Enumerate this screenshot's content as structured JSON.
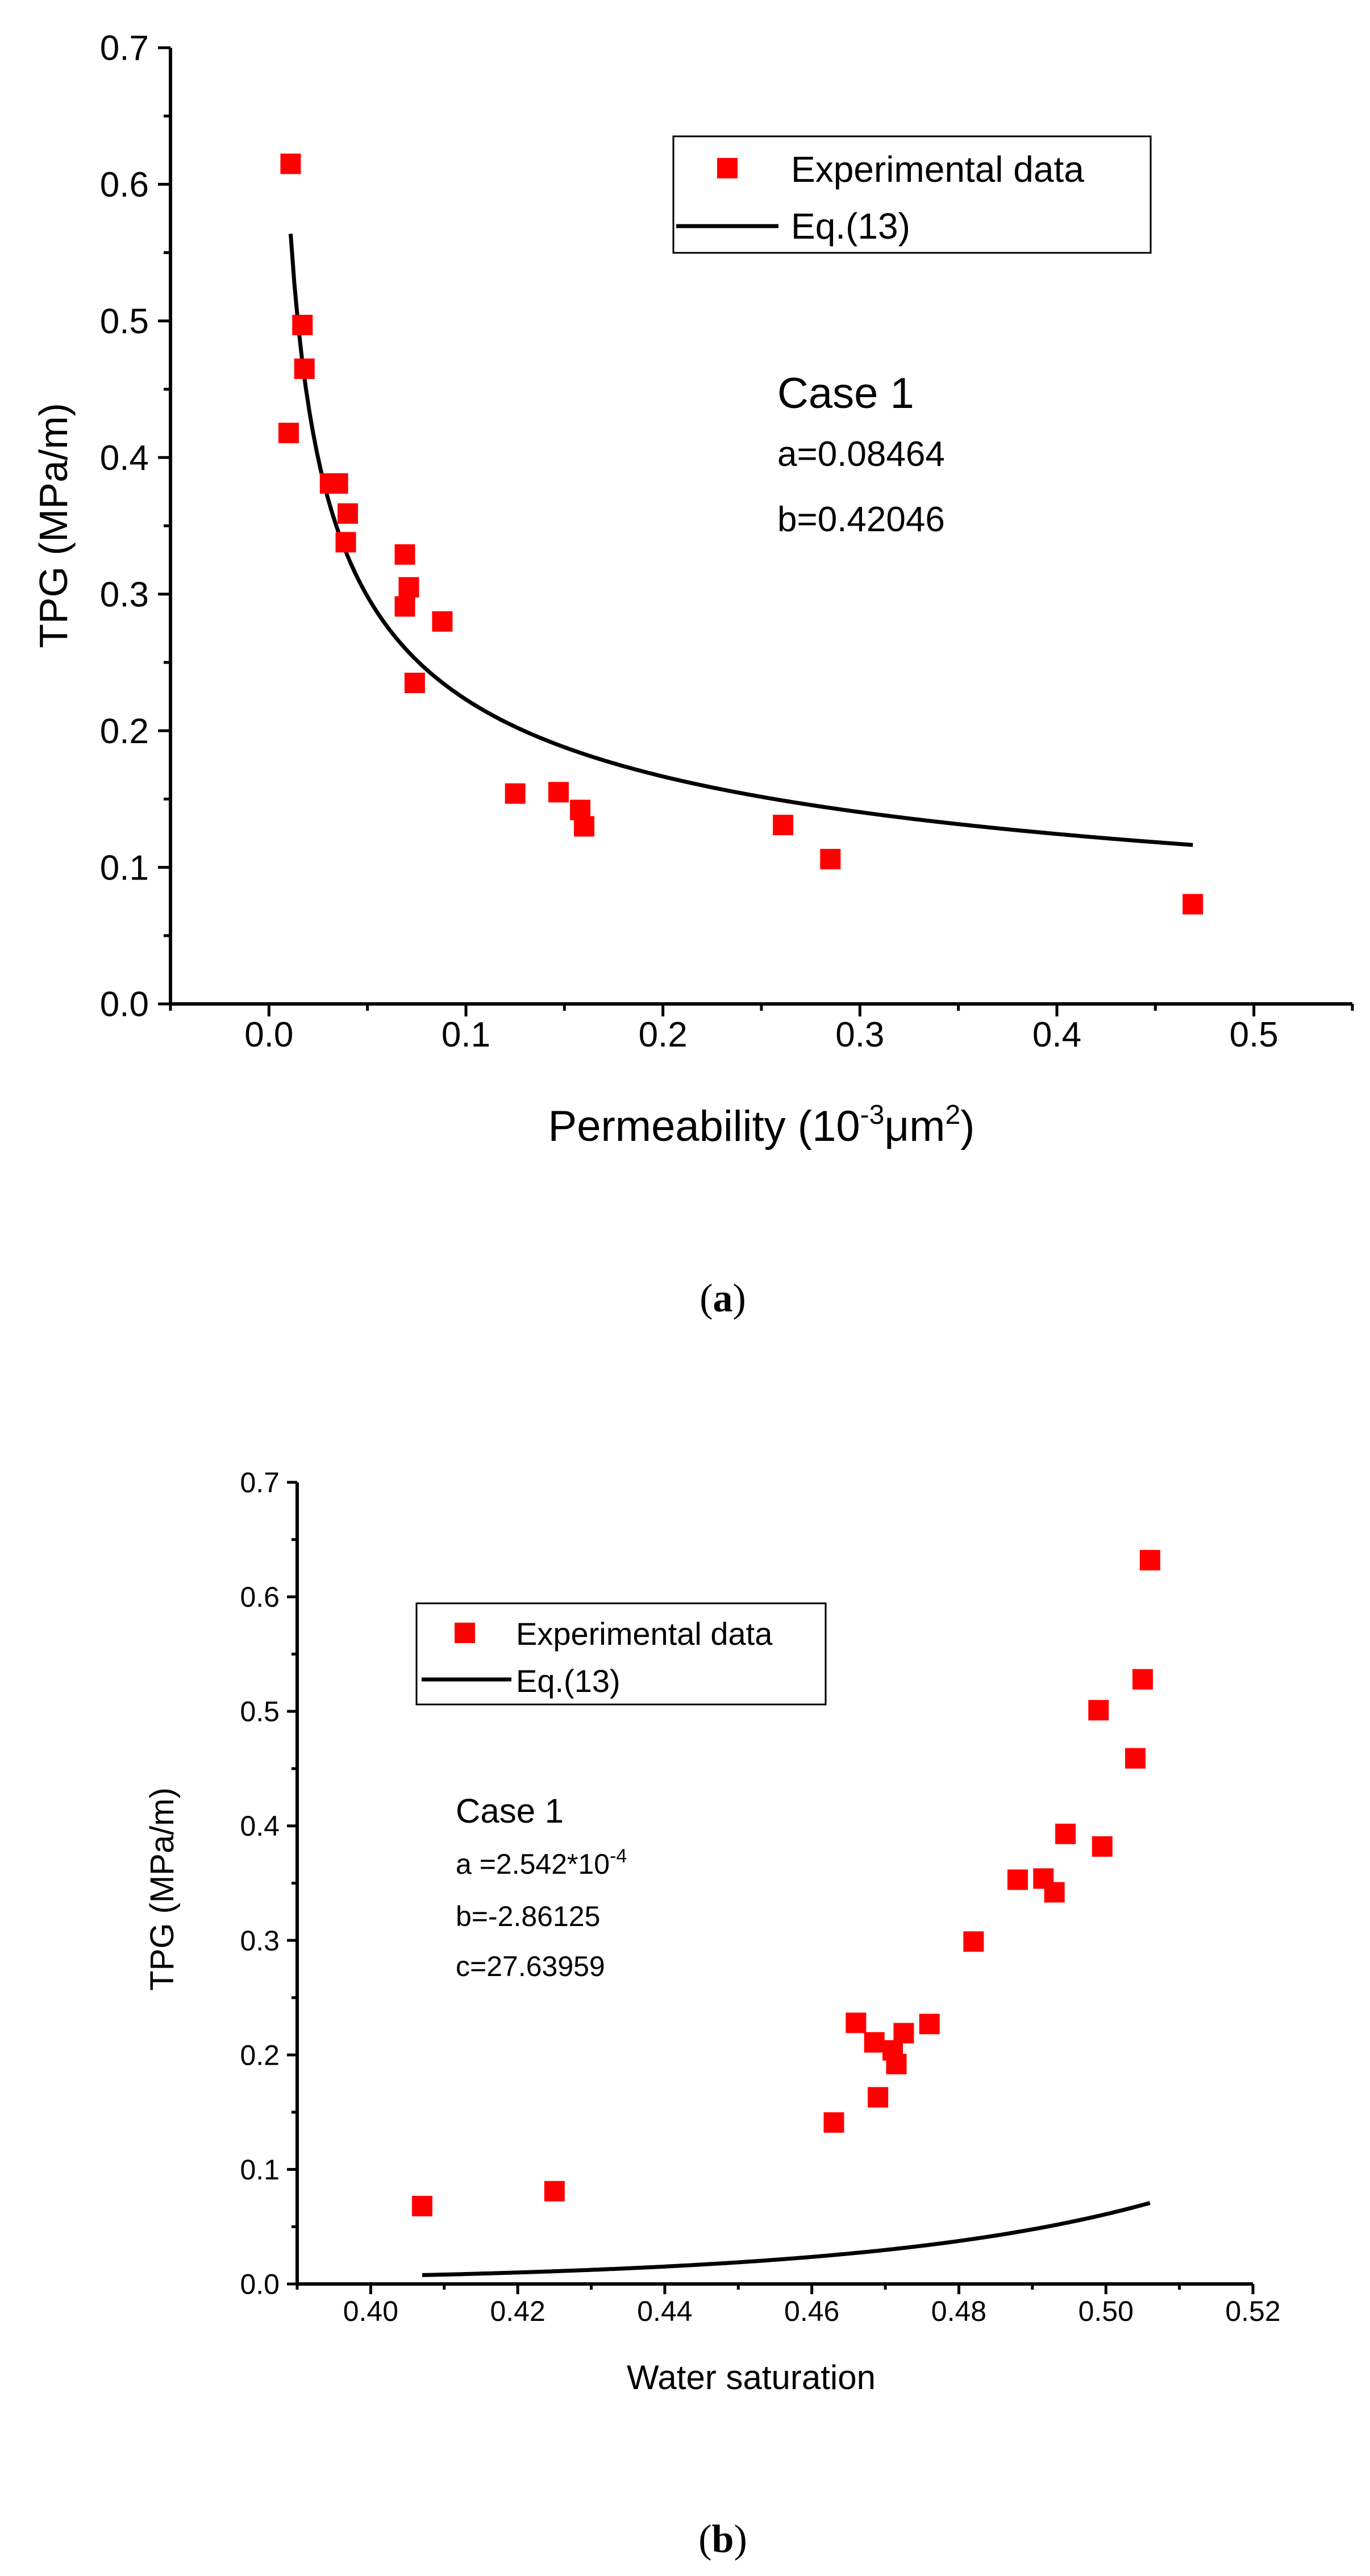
{
  "colors": {
    "marker": "#ff0000",
    "line": "#000000",
    "background": "#ffffff"
  },
  "chart_data": [
    {
      "type": "scatter",
      "caption": {
        "open": "(",
        "letter": "a",
        "close": ")"
      },
      "xlabel": {
        "pre": "Permeability (10",
        "sup1": "-3",
        "mid": "μm",
        "sup2": "2",
        "post": ")"
      },
      "ylabel": "TPG (MPa/m)",
      "xlim": [
        -0.05,
        0.55
      ],
      "ylim": [
        0,
        0.7
      ],
      "xticks": [
        0.0,
        0.1,
        0.2,
        0.3,
        0.4,
        0.5
      ],
      "xtick_labels": [
        "0.0",
        "0.1",
        "0.2",
        "0.3",
        "0.4",
        "0.5"
      ],
      "yticks": [
        0.0,
        0.1,
        0.2,
        0.3,
        0.4,
        0.5,
        0.6,
        0.7
      ],
      "ytick_labels": [
        "0.0",
        "0.1",
        "0.2",
        "0.3",
        "0.4",
        "0.5",
        "0.6",
        "0.7"
      ],
      "series": [
        {
          "name": "Experimental data",
          "kind": "points",
          "x": [
            0.011,
            0.017,
            0.018,
            0.01,
            0.035,
            0.031,
            0.04,
            0.039,
            0.069,
            0.071,
            0.069,
            0.088,
            0.074,
            0.125,
            0.147,
            0.158,
            0.16,
            0.261,
            0.285,
            0.469
          ],
          "y": [
            0.615,
            0.497,
            0.465,
            0.418,
            0.381,
            0.381,
            0.359,
            0.338,
            0.329,
            0.305,
            0.291,
            0.28,
            0.235,
            0.154,
            0.155,
            0.142,
            0.13,
            0.131,
            0.106,
            0.073
          ]
        },
        {
          "name": "Eq.(13)",
          "kind": "power",
          "a": 0.08464,
          "b": 0.42046,
          "x_range": [
            0.011,
            0.469
          ]
        }
      ],
      "annotations": [
        "Case 1",
        "a=0.08464",
        "b=0.42046"
      ]
    },
    {
      "type": "scatter",
      "caption": {
        "open": "(",
        "letter": "b",
        "close": ")"
      },
      "xlabel": "Water saturation",
      "ylabel": "TPG (MPa/m)",
      "xlim": [
        0.39,
        0.52
      ],
      "ylim": [
        0,
        0.7
      ],
      "xticks": [
        0.4,
        0.42,
        0.44,
        0.46,
        0.48,
        0.5,
        0.52
      ],
      "xtick_labels": [
        "0.40",
        "0.42",
        "0.44",
        "0.46",
        "0.48",
        "0.50",
        "0.52"
      ],
      "yticks": [
        0.0,
        0.1,
        0.2,
        0.3,
        0.4,
        0.5,
        0.6,
        0.7
      ],
      "ytick_labels": [
        "0.0",
        "0.1",
        "0.2",
        "0.3",
        "0.4",
        "0.5",
        "0.6",
        "0.7"
      ],
      "series": [
        {
          "name": "Experimental data",
          "kind": "points",
          "x": [
            0.407,
            0.425,
            0.463,
            0.466,
            0.4685,
            0.469,
            0.471,
            0.4715,
            0.4725,
            0.476,
            0.482,
            0.488,
            0.4915,
            0.493,
            0.4945,
            0.499,
            0.4995,
            0.504,
            0.505,
            0.506
          ],
          "y": [
            0.068,
            0.081,
            0.141,
            0.228,
            0.211,
            0.163,
            0.204,
            0.192,
            0.219,
            0.227,
            0.299,
            0.353,
            0.354,
            0.342,
            0.393,
            0.501,
            0.382,
            0.459,
            0.528,
            0.632
          ]
        },
        {
          "name": "Eq.(13)",
          "kind": "exp_quadratic",
          "a": 0.0002542,
          "b": -2.86125,
          "c": 27.63959,
          "x_range": [
            0.407,
            0.506
          ]
        }
      ],
      "annotations": [
        "Case 1",
        "a =2.542*10",
        "-4",
        "b=-2.86125",
        "c=27.63959"
      ]
    }
  ]
}
